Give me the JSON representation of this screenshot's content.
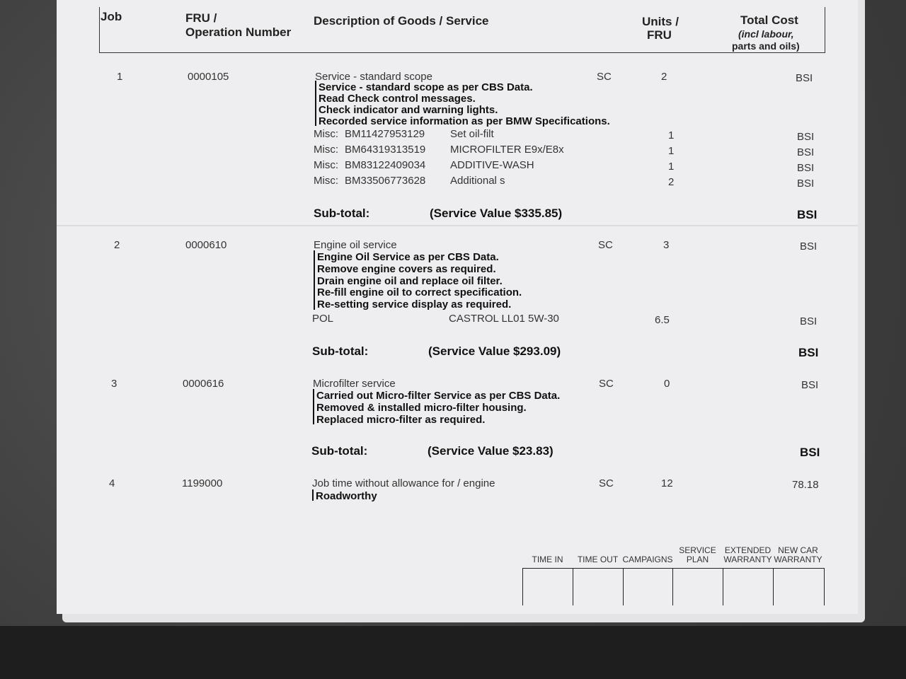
{
  "header": {
    "job": "Job",
    "fru_line1": "FRU /",
    "fru_line2": "Operation Number",
    "description": "Description of Goods / Service",
    "units_line1": "Units /",
    "units_line2": "FRU",
    "cost_line1": "Total Cost",
    "cost_line2": "(incl labour,",
    "cost_line3": "parts and oils)"
  },
  "jobs": [
    {
      "job": "1",
      "fru": "0000105",
      "title": "Service - standard scope",
      "code": "SC",
      "units": "2",
      "cost": "BSI",
      "details": [
        "Service - standard scope as per CBS Data.",
        "Read Check control messages.",
        "Check indicator and warning lights.",
        "Recorded service information as per BMW Specifications."
      ],
      "parts": [
        {
          "type": "Misc:",
          "part": "BM11427953129",
          "desc": "Set oil-filt",
          "units": "1",
          "cost": "BSI"
        },
        {
          "type": "Misc:",
          "part": "BM64319313519",
          "desc": "MICROFILTER E9x/E8x",
          "units": "1",
          "cost": "BSI"
        },
        {
          "type": "Misc:",
          "part": "BM83122409034",
          "desc": "ADDITIVE-WASH",
          "units": "1",
          "cost": "BSI"
        },
        {
          "type": "Misc:",
          "part": "BM33506773628",
          "desc": "Additional s",
          "units": "2",
          "cost": "BSI"
        }
      ],
      "subtotal_label": "Sub-total:",
      "subtotal_value": "(Service Value $335.85)",
      "subtotal_cost": "BSI"
    },
    {
      "job": "2",
      "fru": "0000610",
      "title": "Engine oil service",
      "code": "SC",
      "units": "3",
      "cost": "BSI",
      "details": [
        "Engine Oil Service as per CBS Data.",
        "Remove engine covers as required.",
        "Drain engine oil and replace oil filter.",
        "Re-fill engine oil to correct specification.",
        "Re-setting service display as required."
      ],
      "parts": [
        {
          "type": "POL",
          "part": "",
          "desc": "CASTROL LL01 5W-30",
          "units": "6.5",
          "cost": "BSI"
        }
      ],
      "subtotal_label": "Sub-total:",
      "subtotal_value": "(Service Value $293.09)",
      "subtotal_cost": "BSI"
    },
    {
      "job": "3",
      "fru": "0000616",
      "title": "Microfilter service",
      "code": "SC",
      "units": "0",
      "cost": "BSI",
      "details": [
        "Carried out Micro-filter Service as per CBS Data.",
        "Removed & installed micro-filter housing.",
        "Replaced micro-filter as required."
      ],
      "parts": [],
      "subtotal_label": "Sub-total:",
      "subtotal_value": "(Service Value $23.83)",
      "subtotal_cost": "BSI"
    },
    {
      "job": "4",
      "fru": "1199000",
      "title": "Job time without allowance for / engine",
      "code": "SC",
      "units": "12",
      "cost": "78.18",
      "details": [
        "Roadworthy"
      ],
      "parts": []
    }
  ],
  "footer": {
    "columns": [
      "TIME IN",
      "TIME OUT",
      "CAMPAIGNS",
      "SERVICE\nPLAN",
      "EXTENDED\nWARRANTY",
      "NEW CAR\nWARRANTY"
    ]
  }
}
